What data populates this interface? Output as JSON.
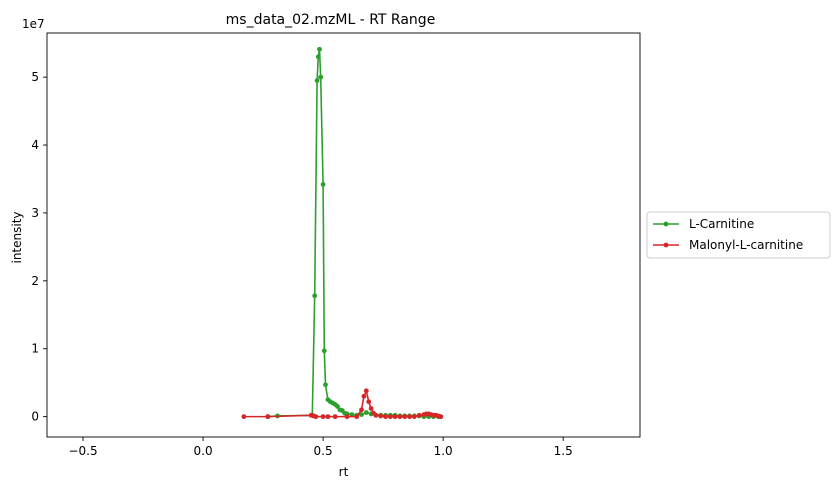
{
  "chart_data": {
    "type": "line",
    "title": "ms_data_02.mzML - RT Range",
    "xlabel": "rt",
    "ylabel": "intensity",
    "y_offset_label": "1e7",
    "xlim": [
      -0.65,
      1.82
    ],
    "ylim": [
      -0.3,
      5.65
    ],
    "y_scale_factor": 10000000,
    "x_ticks": [
      -0.5,
      0.0,
      0.5,
      1.0,
      1.5
    ],
    "x_tick_labels": [
      "−0.5",
      "0.0",
      "0.5",
      "1.0",
      "1.5"
    ],
    "y_ticks": [
      0,
      1,
      2,
      3,
      4,
      5
    ],
    "y_tick_labels": [
      "0",
      "1",
      "2",
      "3",
      "4",
      "5"
    ],
    "grid": false,
    "legend_position": "center-right-outside",
    "series": [
      {
        "name": "L-Carnitine",
        "color": "#2ca02c",
        "x": [
          0.27,
          0.31,
          0.455,
          0.465,
          0.475,
          0.48,
          0.485,
          0.49,
          0.5,
          0.505,
          0.51,
          0.52,
          0.53,
          0.54,
          0.55,
          0.56,
          0.57,
          0.58,
          0.59,
          0.6,
          0.62,
          0.64,
          0.66,
          0.68,
          0.7,
          0.72,
          0.74,
          0.76,
          0.78,
          0.8,
          0.82,
          0.84,
          0.86,
          0.88,
          0.9,
          0.92,
          0.94,
          0.96,
          0.98,
          0.99
        ],
        "y": [
          0.0,
          0.01,
          0.02,
          1.78,
          4.95,
          5.3,
          5.41,
          5.0,
          3.42,
          0.97,
          0.47,
          0.25,
          0.22,
          0.2,
          0.18,
          0.15,
          0.1,
          0.09,
          0.05,
          0.04,
          0.03,
          0.02,
          0.03,
          0.06,
          0.04,
          0.02,
          0.02,
          0.02,
          0.02,
          0.02,
          0.01,
          0.01,
          0.01,
          0.01,
          0.01,
          0.0,
          0.0,
          0.0,
          0.0,
          0.0
        ]
      },
      {
        "name": "Malonyl-L-carnitine",
        "color": "#d62728",
        "x": [
          0.17,
          0.27,
          0.45,
          0.46,
          0.47,
          0.5,
          0.52,
          0.55,
          0.6,
          0.64,
          0.66,
          0.67,
          0.68,
          0.69,
          0.7,
          0.71,
          0.72,
          0.74,
          0.76,
          0.78,
          0.8,
          0.82,
          0.84,
          0.86,
          0.88,
          0.9,
          0.92,
          0.93,
          0.94,
          0.95,
          0.96,
          0.97,
          0.98,
          0.99
        ],
        "y": [
          0.0,
          0.0,
          0.02,
          0.01,
          0.0,
          0.0,
          0.0,
          0.0,
          0.0,
          0.0,
          0.1,
          0.3,
          0.38,
          0.22,
          0.12,
          0.05,
          0.02,
          0.01,
          0.0,
          0.0,
          0.0,
          0.0,
          0.0,
          0.0,
          0.0,
          0.02,
          0.03,
          0.04,
          0.04,
          0.03,
          0.02,
          0.02,
          0.01,
          0.0
        ]
      }
    ]
  }
}
